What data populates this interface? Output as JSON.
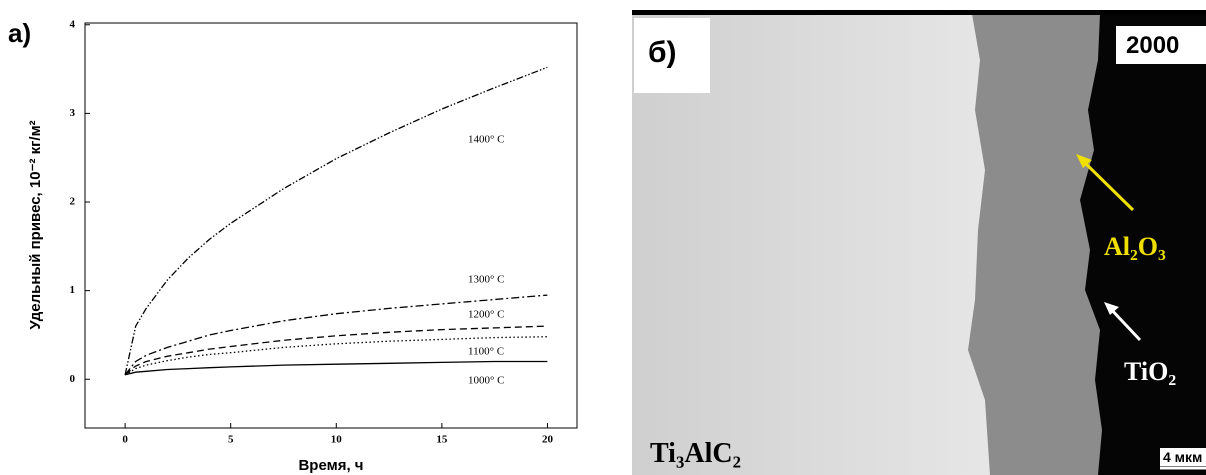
{
  "panel_a_label": "а)",
  "chart_data": {
    "type": "line",
    "x_label": "Время, ч",
    "y_label": "Удельный привес, 10⁻² кг/м²",
    "x": [
      0,
      0.5,
      1,
      2,
      3,
      4,
      5,
      7.5,
      10,
      12.5,
      15,
      17.5,
      20
    ],
    "series": [
      {
        "name": "1400° C",
        "color": "#000000",
        "style": "dash-dot-dot",
        "values": [
          0.05,
          0.6,
          0.8,
          1.12,
          1.37,
          1.58,
          1.76,
          2.15,
          2.49,
          2.78,
          3.05,
          3.29,
          3.52
        ]
      },
      {
        "name": "1300° C",
        "color": "#000000",
        "style": "dash-dot",
        "values": [
          0.05,
          0.2,
          0.27,
          0.36,
          0.43,
          0.5,
          0.55,
          0.66,
          0.74,
          0.8,
          0.85,
          0.9,
          0.95
        ]
      },
      {
        "name": "1200° C",
        "color": "#000000",
        "style": "dashed",
        "values": [
          0.05,
          0.15,
          0.2,
          0.26,
          0.3,
          0.34,
          0.37,
          0.44,
          0.49,
          0.53,
          0.56,
          0.58,
          0.6
        ]
      },
      {
        "name": "1100° C",
        "color": "#000000",
        "style": "dotted",
        "values": [
          0.05,
          0.12,
          0.16,
          0.21,
          0.25,
          0.28,
          0.3,
          0.36,
          0.4,
          0.43,
          0.45,
          0.47,
          0.48
        ]
      },
      {
        "name": "1000° C",
        "color": "#000000",
        "style": "solid",
        "values": [
          0.05,
          0.08,
          0.09,
          0.11,
          0.12,
          0.13,
          0.14,
          0.16,
          0.17,
          0.18,
          0.19,
          0.2,
          0.2
        ]
      }
    ],
    "xlim": [
      -1.9,
      21.4
    ],
    "xticks": [
      0,
      5,
      10,
      15,
      20
    ],
    "ylim": [
      -0.55,
      4.02
    ],
    "yticks": [
      0,
      1,
      2,
      3,
      4
    ],
    "grid": false
  },
  "micrograph": {
    "panel_label": "б)",
    "magnification": "2000",
    "oxide_label": "Al₂O₃",
    "tio2_label": "TiO₂",
    "matrix_label": "Ti₃AlC₂",
    "scale_label": "4 мкм"
  }
}
